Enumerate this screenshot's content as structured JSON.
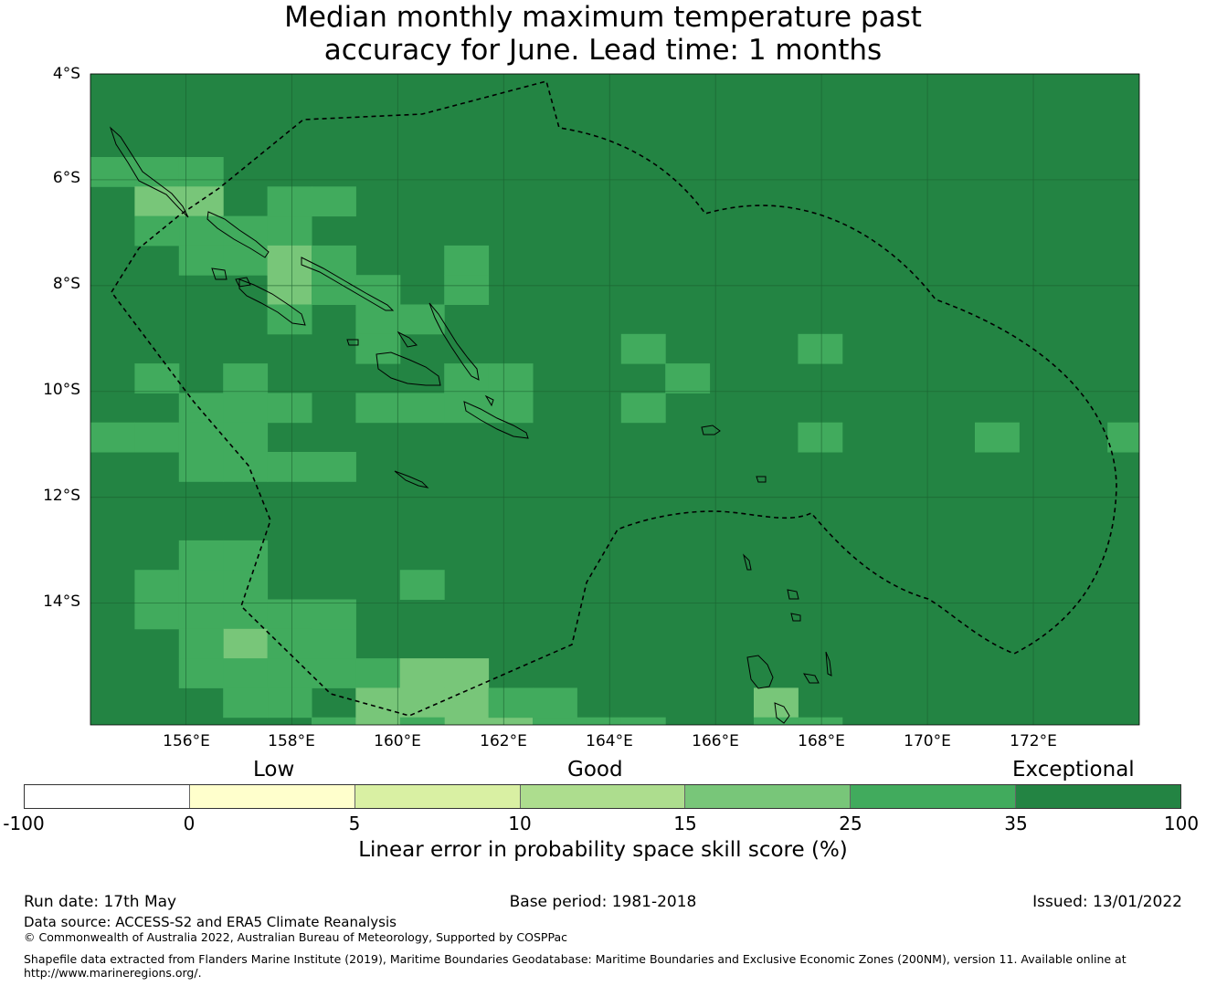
{
  "title": {
    "line1": "Median monthly maximum temperature past",
    "line2": "accuracy for June. Lead time: 1 months"
  },
  "map": {
    "background_color": "#238443",
    "lat_labels": [
      "4°S",
      "6°S",
      "8°S",
      "10°S",
      "12°S",
      "14°S"
    ],
    "lon_labels": [
      "156°E",
      "158°E",
      "160°E",
      "162°E",
      "164°E",
      "166°E",
      "168°E",
      "170°E",
      "172°E"
    ],
    "eez_boundary": "dashed",
    "gridlines": true
  },
  "legend": {
    "category_labels": [
      "Low",
      "Good",
      "Exceptional"
    ],
    "colors": [
      "#ffffff",
      "#ffffcc",
      "#d9f0a3",
      "#addd8e",
      "#78c679",
      "#41ab5d",
      "#238443"
    ],
    "ticks": [
      "-100",
      "0",
      "5",
      "10",
      "15",
      "25",
      "35",
      "100"
    ],
    "label": "Linear error in probability space skill score (%)"
  },
  "footer": {
    "run_date": "Run date: 17th May",
    "base_period": "Base period: 1981-2018",
    "issued": "Issued: 13/01/2022",
    "data_source": "Data source: ACCESS-S2 and ERA5 Climate Reanalysis",
    "copyright": "© Commonwealth of Australia 2022, Australian Bureau of Meteorology, Supported by COSPPac",
    "shapefile_line1": "Shapefile data extracted from Flanders Marine Institute (2019), Maritime Boundaries Geodatabase: Maritime Boundaries and Exclusive Economic Zones (200NM), version 11. Available online at",
    "shapefile_line2": "http://www.marineregions.org/."
  }
}
